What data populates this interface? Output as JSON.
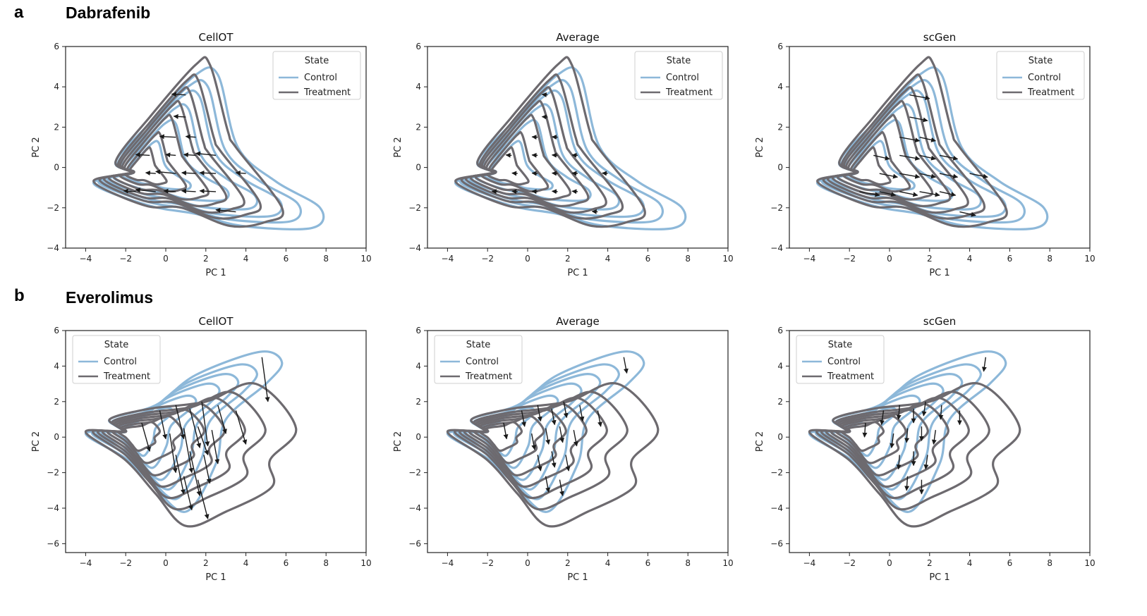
{
  "rows": [
    {
      "letter": "a",
      "drug": "Dabrafenib"
    },
    {
      "letter": "b",
      "drug": "Everolimus"
    }
  ],
  "colors": {
    "control": "#8db8d9",
    "treatment": "#6d6a6f",
    "arrow": "#1a1a1a"
  },
  "chart_data": [
    {
      "type": "contour",
      "panel": "a",
      "title": "CellOT",
      "xlabel": "PC 1",
      "ylabel": "PC 2",
      "xlim": [
        -5,
        10
      ],
      "ylim": [
        -4,
        6
      ],
      "xticks": [
        -4,
        -2,
        0,
        2,
        4,
        6,
        8,
        10
      ],
      "yticks": [
        -4,
        -2,
        0,
        2,
        4,
        6
      ],
      "legend": {
        "title": "State",
        "position": "top-right",
        "entries": [
          "Control",
          "Treatment"
        ]
      }
    },
    {
      "type": "contour",
      "panel": "a",
      "title": "Average",
      "xlabel": "PC 1",
      "ylabel": "PC 2",
      "xlim": [
        -5,
        10
      ],
      "ylim": [
        -4,
        6
      ],
      "xticks": [
        -4,
        -2,
        0,
        2,
        4,
        6,
        8,
        10
      ],
      "yticks": [
        -4,
        -2,
        0,
        2,
        4,
        6
      ],
      "legend": {
        "title": "State",
        "position": "top-right",
        "entries": [
          "Control",
          "Treatment"
        ]
      }
    },
    {
      "type": "contour",
      "panel": "a",
      "title": "scGen",
      "xlabel": "PC 1",
      "ylabel": "PC 2",
      "xlim": [
        -5,
        10
      ],
      "ylim": [
        -4,
        6
      ],
      "xticks": [
        -4,
        -2,
        0,
        2,
        4,
        6,
        8,
        10
      ],
      "yticks": [
        -4,
        -2,
        0,
        2,
        4,
        6
      ],
      "legend": {
        "title": "State",
        "position": "top-right",
        "entries": [
          "Control",
          "Treatment"
        ]
      }
    },
    {
      "type": "contour",
      "panel": "b",
      "title": "CellOT",
      "xlabel": "PC 1",
      "ylabel": "PC 2",
      "xlim": [
        -5,
        10
      ],
      "ylim": [
        -6.5,
        6
      ],
      "xticks": [
        -4,
        -2,
        0,
        2,
        4,
        6,
        8,
        10
      ],
      "yticks": [
        -6,
        -4,
        -2,
        0,
        2,
        4,
        6
      ],
      "legend": {
        "title": "State",
        "position": "top-left",
        "entries": [
          "Control",
          "Treatment"
        ]
      }
    },
    {
      "type": "contour",
      "panel": "b",
      "title": "Average",
      "xlabel": "PC 1",
      "ylabel": "PC 2",
      "xlim": [
        -5,
        10
      ],
      "ylim": [
        -6.5,
        6
      ],
      "xticks": [
        -4,
        -2,
        0,
        2,
        4,
        6,
        8,
        10
      ],
      "yticks": [
        -6,
        -4,
        -2,
        0,
        2,
        4,
        6
      ],
      "legend": {
        "title": "State",
        "position": "top-left",
        "entries": [
          "Control",
          "Treatment"
        ]
      }
    },
    {
      "type": "contour",
      "panel": "b",
      "title": "scGen",
      "xlabel": "PC 1",
      "ylabel": "PC 2",
      "xlim": [
        -5,
        10
      ],
      "ylim": [
        -6.5,
        6
      ],
      "xticks": [
        -4,
        -2,
        0,
        2,
        4,
        6,
        8,
        10
      ],
      "yticks": [
        -6,
        -4,
        -2,
        0,
        2,
        4,
        6
      ],
      "legend": {
        "title": "State",
        "position": "top-left",
        "entries": [
          "Control",
          "Treatment"
        ]
      }
    }
  ]
}
